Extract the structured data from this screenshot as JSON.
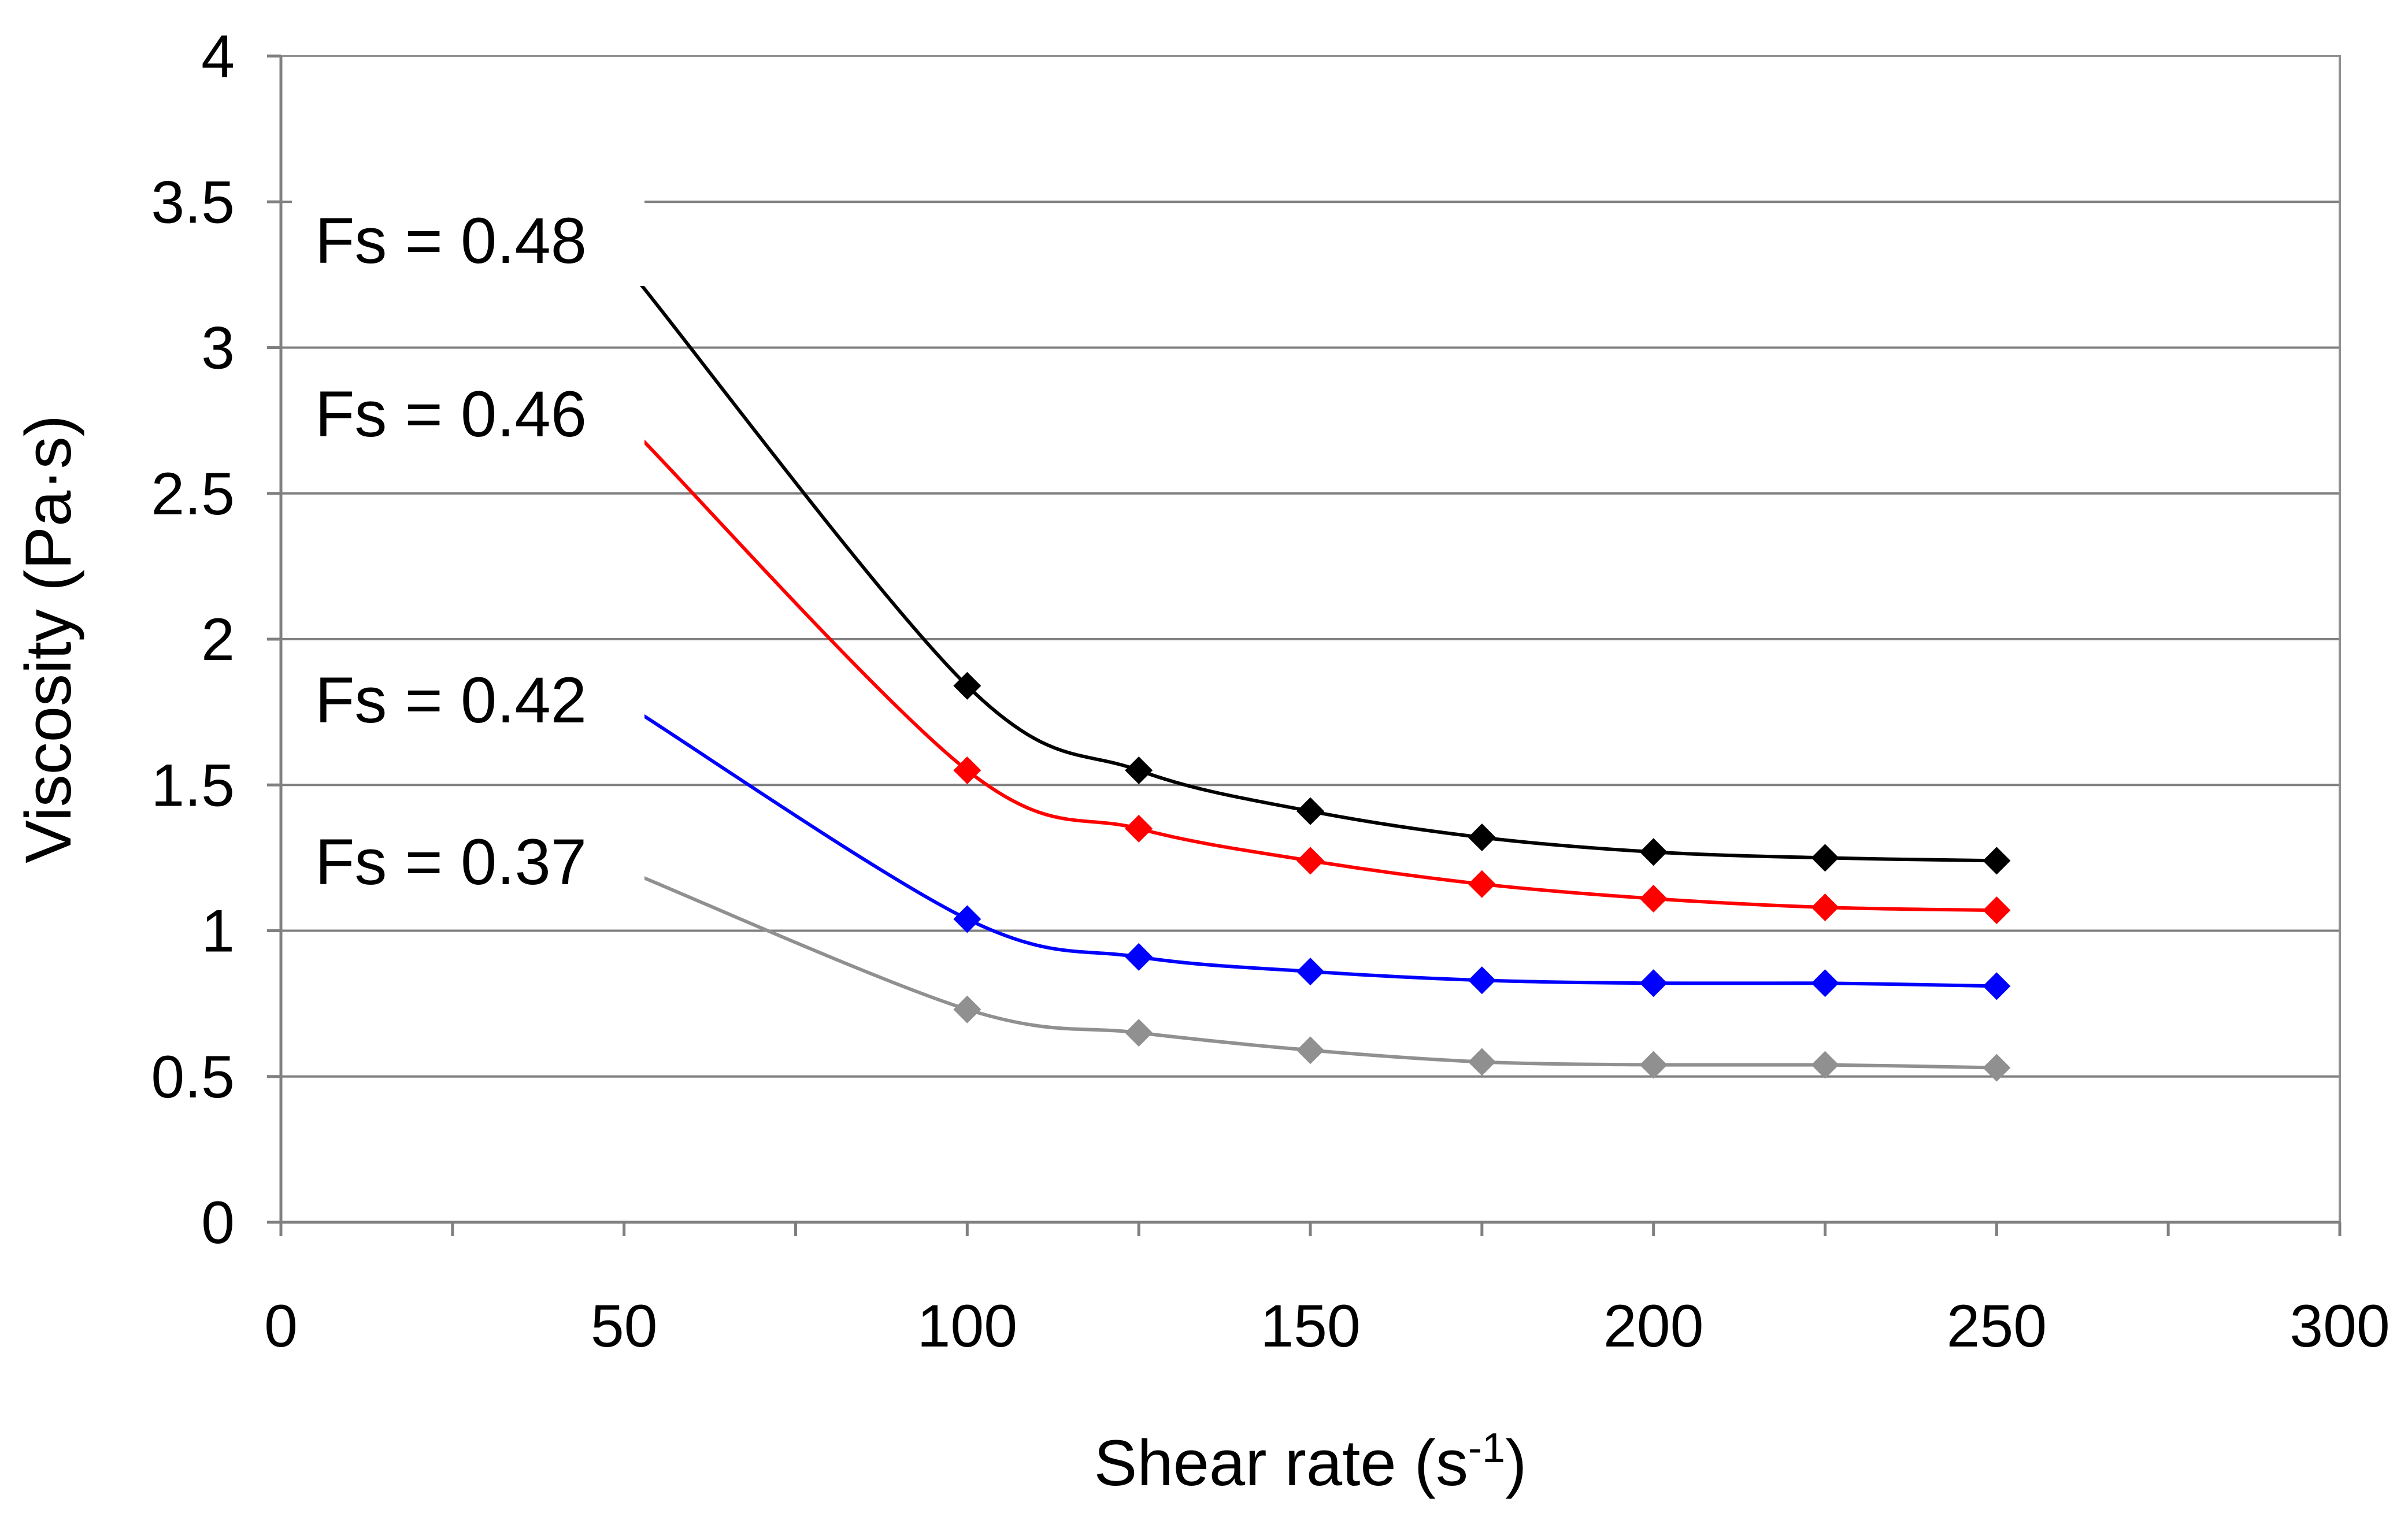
{
  "chart_data": {
    "type": "line",
    "title": "",
    "xlabel": "Shear rate (s",
    "xlabel_superscript": "-1",
    "xlabel_suffix": ")",
    "ylabel": "Viscosity (Pa·s)",
    "xlim": [
      0,
      300
    ],
    "ylim": [
      0,
      4
    ],
    "x_ticks": [
      0,
      50,
      100,
      150,
      200,
      250,
      300
    ],
    "x_tick_labels": [
      "0",
      "50",
      "100",
      "150",
      "200",
      "250",
      "300"
    ],
    "y_ticks": [
      0,
      0.5,
      1,
      1.5,
      2,
      2.5,
      3,
      3.5,
      4
    ],
    "y_tick_labels": [
      "0",
      "0.5",
      "1",
      "1.5",
      "2",
      "2.5",
      "3",
      "3.5",
      "4"
    ],
    "grid": "horizontal",
    "marker": "diamond",
    "x": [
      100,
      125,
      150,
      175,
      200,
      225,
      250
    ],
    "series": [
      {
        "name": "Fs = 0.48",
        "color": "#000000",
        "values": [
          1.84,
          1.55,
          1.41,
          1.32,
          1.27,
          1.25,
          1.24
        ],
        "curve_start": [
          52,
          3.23
        ]
      },
      {
        "name": "Fs = 0.46",
        "color": "#ff0000",
        "values": [
          1.55,
          1.35,
          1.24,
          1.16,
          1.11,
          1.08,
          1.07
        ],
        "curve_start": [
          52,
          2.7
        ]
      },
      {
        "name": "Fs = 0.42",
        "color": "#0000ff",
        "values": [
          1.04,
          0.91,
          0.86,
          0.83,
          0.82,
          0.82,
          0.81
        ],
        "curve_start": [
          52,
          1.75
        ]
      },
      {
        "name": "Fs = 0.37",
        "color": "#909090",
        "values": [
          0.73,
          0.65,
          0.59,
          0.55,
          0.54,
          0.54,
          0.53
        ],
        "curve_start": [
          52,
          1.19
        ]
      }
    ]
  }
}
